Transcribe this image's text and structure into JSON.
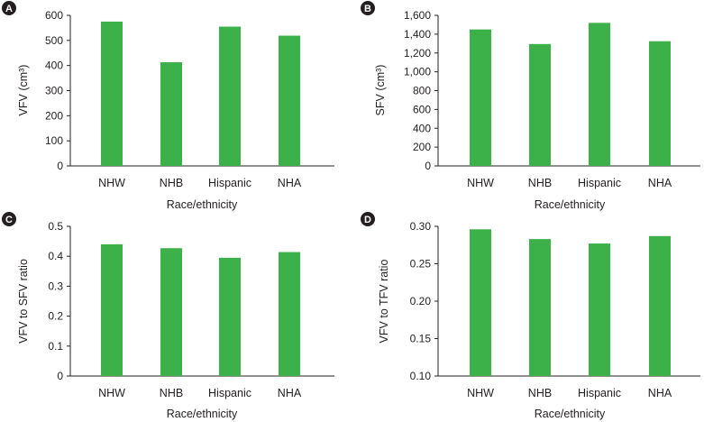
{
  "chart_data": [
    {
      "panel_label": "A",
      "type": "bar",
      "categories": [
        "NHW",
        "NHB",
        "Hispanic",
        "NHA"
      ],
      "values": [
        575,
        413,
        555,
        519
      ],
      "ylabel": "VFV (cm³)",
      "xlabel": "Race/ethnicity",
      "ylim": [
        0,
        600
      ],
      "yticks": [
        "0",
        "100",
        "200",
        "300",
        "400",
        "500",
        "600"
      ],
      "ytick_values": [
        0,
        100,
        200,
        300,
        400,
        500,
        600
      ],
      "bar_color": "#3cb14a"
    },
    {
      "panel_label": "B",
      "type": "bar",
      "categories": [
        "NHW",
        "NHB",
        "Hispanic",
        "NHA"
      ],
      "values": [
        1450,
        1295,
        1520,
        1325
      ],
      "ylabel": "SFV (cm³)",
      "xlabel": "Race/ethnicity",
      "ylim": [
        0,
        1600
      ],
      "yticks": [
        "0",
        "200",
        "400",
        "600",
        "800",
        "1,000",
        "1,200",
        "1,400",
        "1,600"
      ],
      "ytick_values": [
        0,
        200,
        400,
        600,
        800,
        1000,
        1200,
        1400,
        1600
      ],
      "bar_color": "#3cb14a"
    },
    {
      "panel_label": "C",
      "type": "bar",
      "categories": [
        "NHW",
        "NHB",
        "Hispanic",
        "NHA"
      ],
      "values": [
        0.44,
        0.427,
        0.395,
        0.414
      ],
      "ylabel": "VFV to SFV ratio",
      "xlabel": "Race/ethnicity",
      "ylim": [
        0,
        0.5
      ],
      "yticks": [
        "0",
        "0.1",
        "0.2",
        "0.3",
        "0.4",
        "0.5"
      ],
      "ytick_values": [
        0,
        0.1,
        0.2,
        0.3,
        0.4,
        0.5
      ],
      "bar_color": "#3cb14a"
    },
    {
      "panel_label": "D",
      "type": "bar",
      "categories": [
        "NHW",
        "NHB",
        "Hispanic",
        "NHA"
      ],
      "values": [
        0.296,
        0.283,
        0.277,
        0.287
      ],
      "ylabel": "VFV to TFV ratio",
      "xlabel": "Race/ethnicity",
      "ylim": [
        0.1,
        0.3
      ],
      "yticks": [
        "0.10",
        "0.15",
        "0.20",
        "0.25",
        "0.30"
      ],
      "ytick_values": [
        0.1,
        0.15,
        0.2,
        0.25,
        0.3
      ],
      "bar_color": "#3cb14a"
    }
  ]
}
